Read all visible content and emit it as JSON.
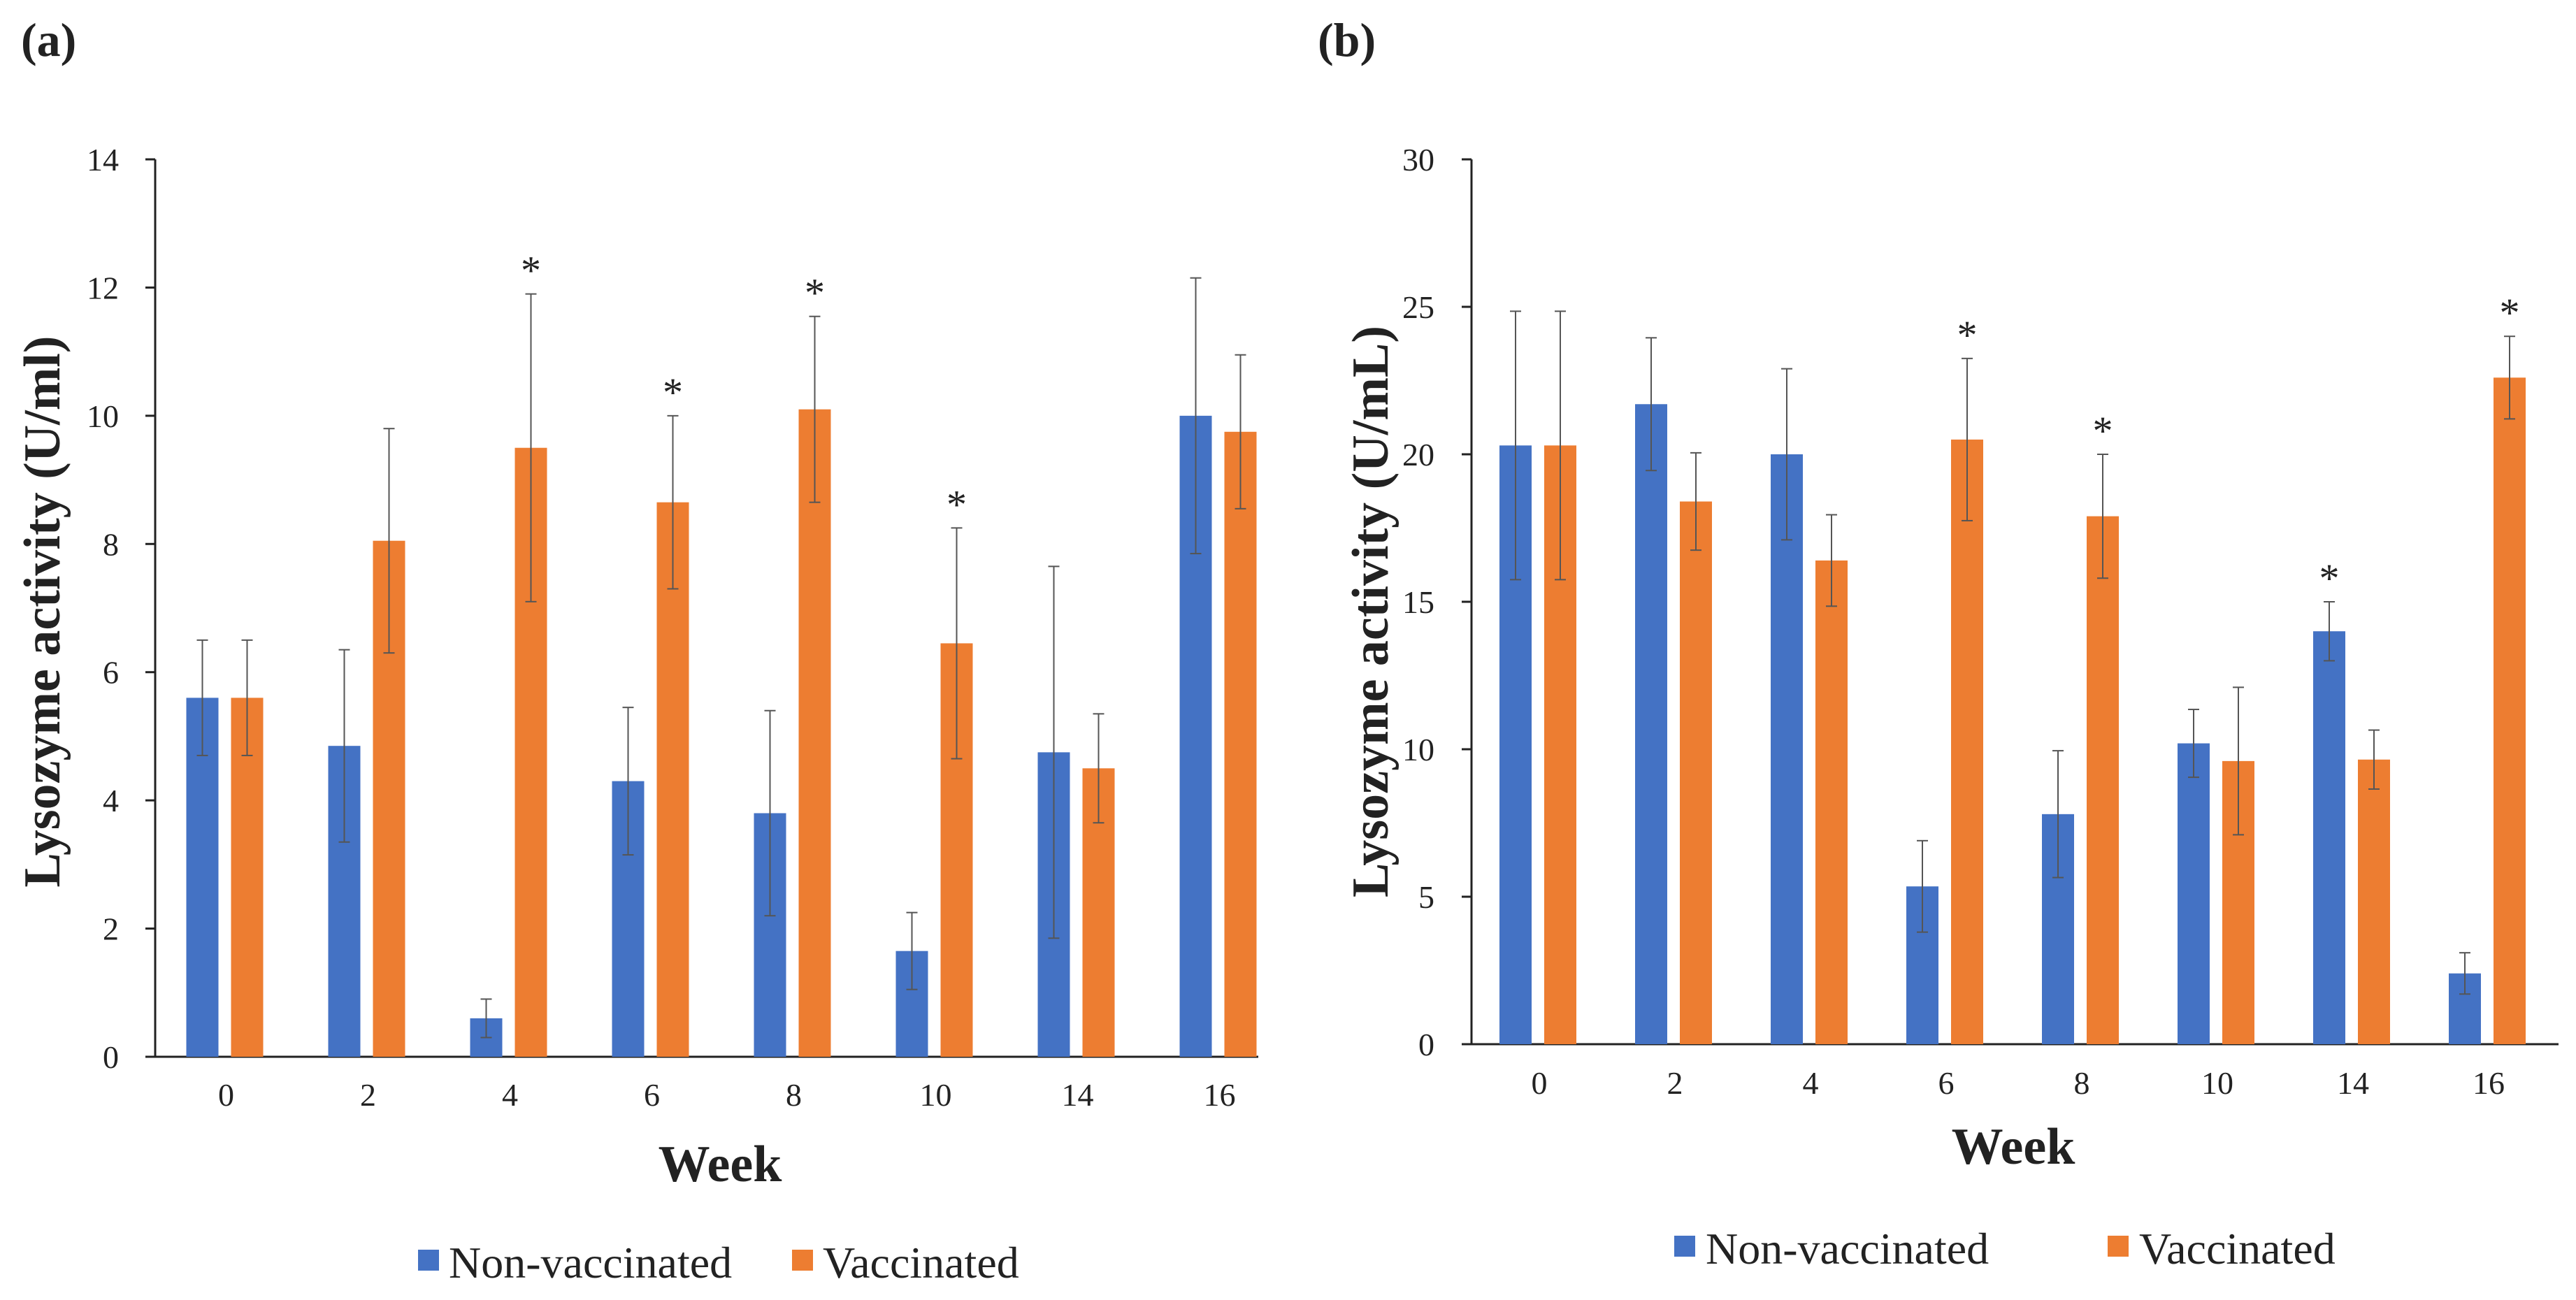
{
  "colors": {
    "non_vaccinated": "#4472C4",
    "vaccinated": "#ED7D31",
    "axis": "#222222",
    "error_bar": "#555555"
  },
  "chart_data": [
    {
      "panel_label": "(a)",
      "type": "bar",
      "title": "",
      "xlabel": "Week",
      "ylabel": "Lysozyme activity (U/ml)",
      "ylim": [
        0,
        14
      ],
      "yticks": [
        0,
        2,
        4,
        6,
        8,
        10,
        12,
        14
      ],
      "categories": [
        "0",
        "2",
        "4",
        "6",
        "8",
        "10",
        "14",
        "16"
      ],
      "series": [
        {
          "name": "Non-vaccinated",
          "values": [
            5.6,
            4.85,
            0.6,
            4.3,
            3.8,
            1.65,
            4.75,
            10.0
          ],
          "errors": [
            0.9,
            1.5,
            0.3,
            1.15,
            1.6,
            0.6,
            2.9,
            2.15
          ],
          "significant": [
            false,
            false,
            false,
            false,
            false,
            false,
            false,
            false
          ]
        },
        {
          "name": "Vaccinated",
          "values": [
            5.6,
            8.05,
            9.5,
            8.65,
            10.1,
            6.45,
            4.5,
            9.75
          ],
          "errors": [
            0.9,
            1.75,
            2.4,
            1.35,
            1.45,
            1.8,
            0.85,
            1.2
          ],
          "significant": [
            false,
            false,
            true,
            true,
            true,
            true,
            false,
            false
          ]
        }
      ],
      "significance_marker": "*",
      "legend": [
        "Non-vaccinated",
        "Vaccinated"
      ]
    },
    {
      "panel_label": "(b)",
      "type": "bar",
      "title": "",
      "xlabel": "Week",
      "ylabel": "Lysozyme activity (U/mL)",
      "ylim": [
        0,
        30
      ],
      "yticks": [
        0,
        5,
        10,
        15,
        20,
        25,
        30
      ],
      "categories": [
        "0",
        "2",
        "4",
        "6",
        "8",
        "10",
        "14",
        "16"
      ],
      "series": [
        {
          "name": "Non-vaccinated",
          "values": [
            20.3,
            21.7,
            20.0,
            5.35,
            7.8,
            10.2,
            14.0,
            2.4
          ],
          "errors": [
            4.55,
            2.25,
            2.9,
            1.55,
            2.15,
            1.15,
            1.0,
            0.7
          ],
          "significant": [
            false,
            false,
            false,
            false,
            false,
            false,
            true,
            false
          ]
        },
        {
          "name": "Vaccinated",
          "values": [
            20.3,
            18.4,
            16.4,
            20.5,
            17.9,
            9.6,
            9.65,
            22.6
          ],
          "errors": [
            4.55,
            1.65,
            1.55,
            2.75,
            2.1,
            2.5,
            1.0,
            1.4
          ],
          "significant": [
            false,
            false,
            false,
            true,
            true,
            false,
            false,
            true
          ]
        }
      ],
      "significance_marker": "*",
      "legend": [
        "Non-vaccinated",
        "Vaccinated"
      ]
    }
  ]
}
